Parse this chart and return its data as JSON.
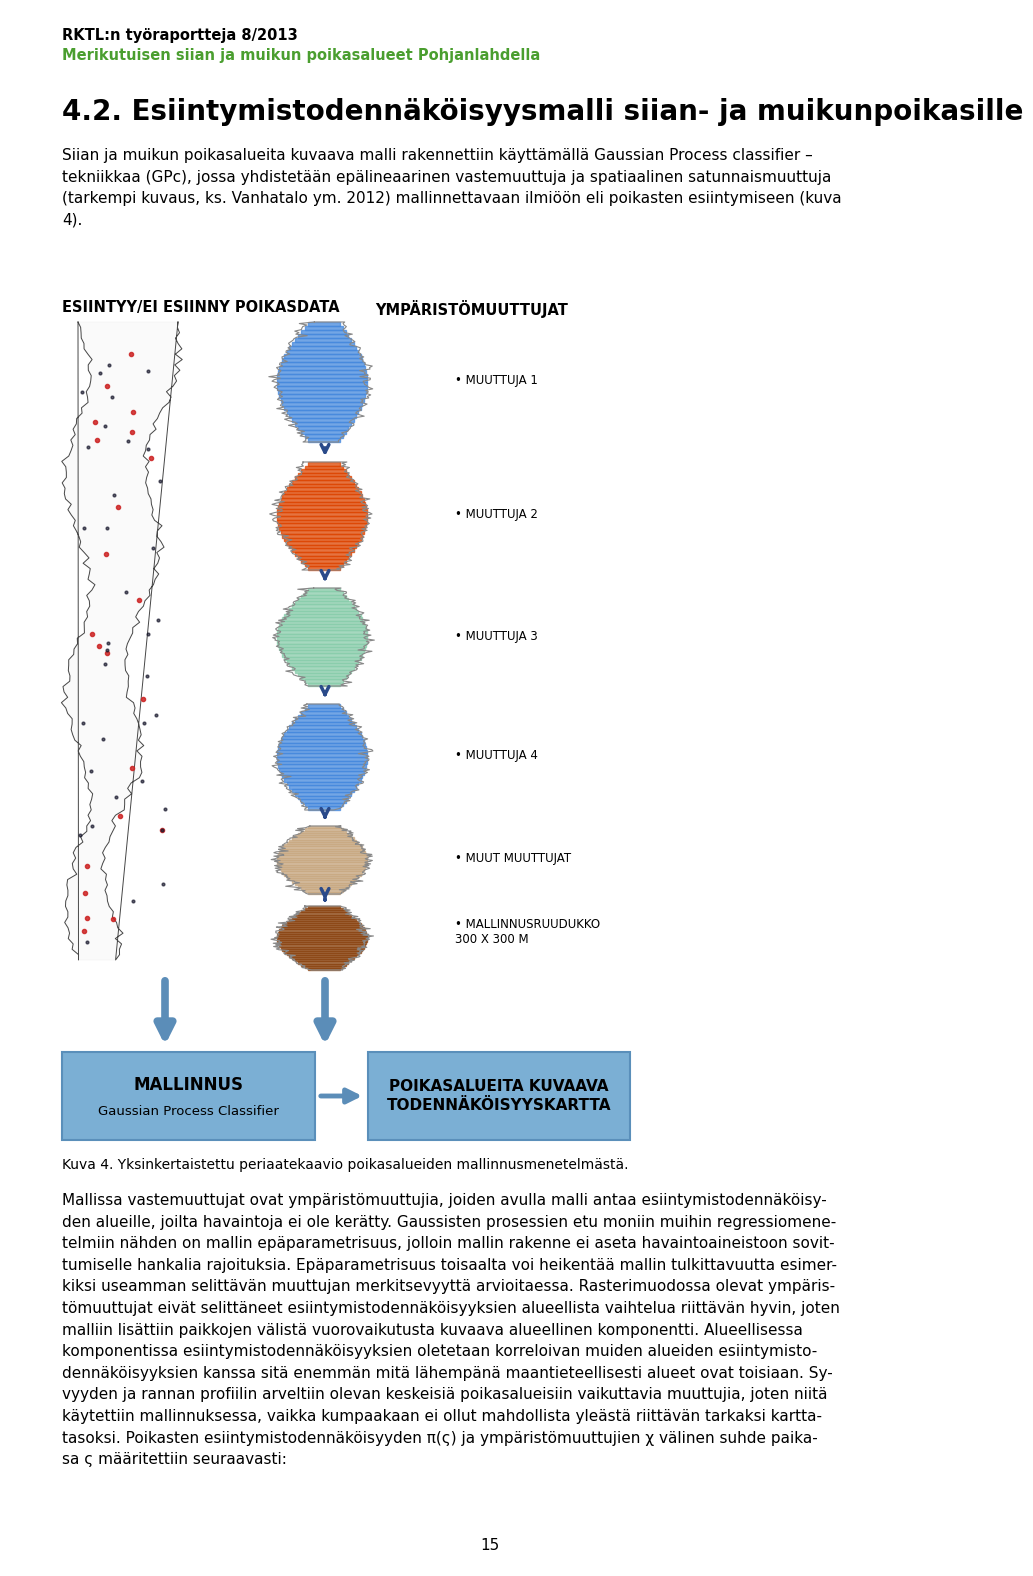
{
  "header_line1": "RKTL:n työraportteja 8/2013",
  "header_line2": "Merikutuisen siian ja muikun poikasalueet Pohjanlahdella",
  "header_line1_color": "#000000",
  "header_line2_color": "#4a9e2f",
  "section_title": "4.2. Esiintymistodennäköisyysmalli siian- ja muikunpoikasille",
  "body_text": "Siian ja muikun poikasalueita kuvaava malli rakennettiin käyttämällä Gaussian Process classifier –\ntekniikkaa (GPc), jossa yhdistetään epälineaarinen vastemuuttuja ja spatiaalinen satunnaismuuttuja\n(tarkempi kuvaus, ks. Vanhatalo ym. 2012) mallinnettavaan ilmiöön eli poikasten esiintymiseen (kuva\n4).",
  "diagram_label_left": "ESIINTYY/EI ESIINNY POIKASDATA",
  "diagram_label_right": "YMPÄRISTÖMUUTTUJAT",
  "bullet_items": [
    "MUUTTUJA 1",
    "MUUTTUJA 2",
    "MUUTTUJA 3",
    "MUUTTUJA 4",
    "MUUT MUUTTUJAT",
    "MALLINNUSRUUDUKKO\n300 X 300 M"
  ],
  "box_left_title": "MALLINNUS",
  "box_left_subtitle": "Gaussian Process Classifier",
  "box_right_title": "POIKASALUEITA KUVAAVA\nTODENNÄKÖISYYSKARTTA",
  "box_color": "#7bafd4",
  "box_edge_color": "#5a8fba",
  "arrow_color": "#5b8db8",
  "down_arrow_color": "#5b8db8",
  "caption": "Kuva 4. Yksinkertaistettu periaatekaavio poikasalueiden mallinnusmenetelmästä.",
  "body_text2": "Mallissa vastemuuttujat ovat ympäristömuuttujia, joiden avulla malli antaa esiintymistodennäköisy-\nden alueille, joilta havaintoja ei ole kerätty. Gaussisten prosessien etu moniin muihin regressiomene-\ntelmiin nähden on mallin epäparametrisuus, jolloin mallin rakenne ei aseta havaintoaineistoon sovit-\ntumiselle hankalia rajoituksia. Epäparametrisuus toisaalta voi heikentää mallin tulkittavuutta esimer-\nkiksi useamman selittävän muuttujan merkitsevyyttä arvioitaessa. Rasterimuodossa olevat ympäris-\ntömuuttujat eivät selittäneet esiintymistodennäköisyyksien alueellista vaihtelua riittävän hyvin, joten\nmalliin lisättiin paikkojen välistä vuorovaikutusta kuvaava alueellinen komponentti. Alueellisessa\nkomponentissa esiintymistodennäköisyyksien oletetaan korreloivan muiden alueiden esiintymisto-\ndennäköisyyksien kanssa sitä enemmän mitä lähempänä maantieteellisesti alueet ovat toisiaan. Sy-\nvyyden ja rannan profiilin arveltiin olevan keskeisiä poikasalueisiin vaikuttavia muuttujia, joten niitä\nkäytettiin mallinnuksessa, vaikka kumpaakaan ei ollut mahdollista yleästä riittävän tarkaksi kartta-\ntasoksi. Poikasten esiintymistodennäköisyyden π(ς) ja ympäristömuuttujien χ välinen suhde paika-\nsa ς määritettiin seuraavasti:",
  "page_number": "15",
  "background_color": "#ffffff",
  "text_color": "#000000"
}
